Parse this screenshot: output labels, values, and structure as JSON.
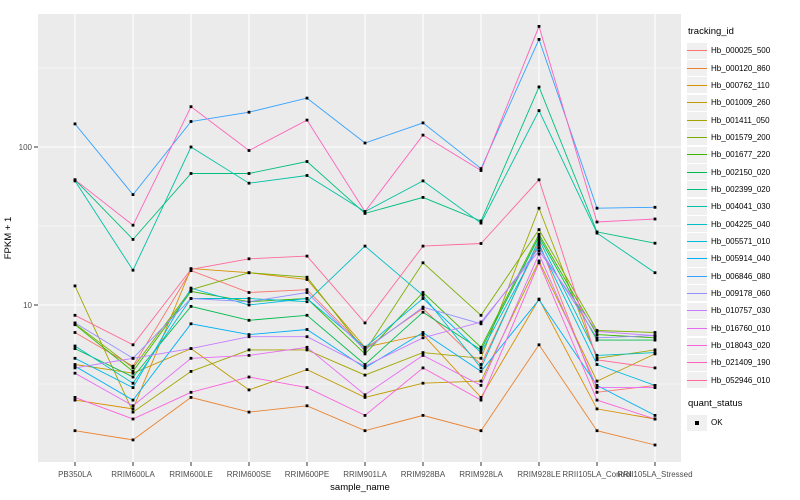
{
  "chart_data": {
    "type": "line",
    "title": "",
    "xlabel": "sample_name",
    "ylabel": "FPKM + 1",
    "x_categories": [
      "PB350LA",
      "RRIM600LA",
      "RRIM600LE",
      "RRIM600SE",
      "RRIM600PE",
      "RRIM901LA",
      "RRIM928BA",
      "RRIM928LA",
      "RRIM928LE",
      "RRII105LA_Control",
      "RRII105LA_Stressed"
    ],
    "y_scale": "log10",
    "y_ticks": [
      100,
      10
    ],
    "y_minor_ticks": [
      316.23,
      31.62,
      3.162
    ],
    "ylim": [
      1.01,
      700
    ],
    "grid": true,
    "legend_position": "right",
    "legend": {
      "tracking_title": "tracking_id",
      "quant_title": "quant_status",
      "quant_label": "OK"
    },
    "point_marker": "black-square",
    "colors": {
      "panel_bg": "#EBEBEB",
      "grid": "#FFFFFF",
      "tick_label": "#4D4D4D",
      "axis_title": "#000000",
      "point": "#000000",
      "legend_key_bg": "#F0F0F0"
    },
    "series": [
      {
        "name": "Hb_000025_500",
        "color": "#F8766D",
        "values": [
          6.7,
          4.1,
          16.5,
          12.0,
          12.5,
          5.3,
          9.5,
          4.2,
          25.0,
          2.8,
          3.1
        ]
      },
      {
        "name": "Hb_000120_860",
        "color": "#EA8331",
        "values": [
          1.6,
          1.4,
          2.6,
          2.1,
          2.3,
          1.6,
          2.0,
          1.6,
          5.6,
          1.6,
          1.3
        ]
      },
      {
        "name": "Hb_000762_110",
        "color": "#D89000",
        "values": [
          2.5,
          2.2,
          17.0,
          16.0,
          14.5,
          5.4,
          6.5,
          2.6,
          10.9,
          2.2,
          1.9
        ]
      },
      {
        "name": "Hb_001009_260",
        "color": "#C09B00",
        "values": [
          4.2,
          3.7,
          5.3,
          2.9,
          3.9,
          2.6,
          3.2,
          3.3,
          19.0,
          3.3,
          4.9
        ]
      },
      {
        "name": "Hb_001411_050",
        "color": "#A3A500",
        "values": [
          13.2,
          2.1,
          3.8,
          5.2,
          5.2,
          3.6,
          5.0,
          4.6,
          41.0,
          4.6,
          5.2
        ]
      },
      {
        "name": "Hb_001579_200",
        "color": "#7CAE00",
        "values": [
          7.6,
          4.0,
          12.5,
          16.0,
          15.0,
          5.1,
          18.5,
          8.6,
          30.0,
          6.9,
          6.7
        ]
      },
      {
        "name": "Hb_001677_220",
        "color": "#39B600",
        "values": [
          7.5,
          3.8,
          12.2,
          10.5,
          11.0,
          4.9,
          12.0,
          5.4,
          28.0,
          6.5,
          6.2
        ]
      },
      {
        "name": "Hb_002150_020",
        "color": "#00BB4E",
        "values": [
          5.3,
          3.5,
          9.8,
          8.0,
          8.6,
          4.2,
          9.0,
          5.2,
          27.0,
          6.0,
          6.0
        ]
      },
      {
        "name": "Hb_002399_020",
        "color": "#00BF7D",
        "values": [
          62.0,
          26.0,
          68.0,
          68.0,
          81.0,
          38.0,
          48.0,
          34.0,
          240.0,
          29.0,
          24.6
        ]
      },
      {
        "name": "Hb_004041_030",
        "color": "#00C1A3",
        "values": [
          61.0,
          16.6,
          100.0,
          59.0,
          66.0,
          39.0,
          61.0,
          33.0,
          170.0,
          28.5,
          16.0
        ]
      },
      {
        "name": "Hb_004225_040",
        "color": "#00BFC4",
        "values": [
          5.5,
          3.2,
          11.0,
          11.0,
          10.5,
          23.6,
          11.5,
          4.0,
          26.0,
          4.8,
          5.0
        ]
      },
      {
        "name": "Hb_005571_010",
        "color": "#00BAE0",
        "values": [
          4.6,
          3.0,
          12.8,
          10.0,
          11.0,
          5.4,
          11.0,
          5.0,
          24.0,
          4.2,
          3.1
        ]
      },
      {
        "name": "Hb_005914_040",
        "color": "#00B0F6",
        "values": [
          4.1,
          2.5,
          7.6,
          6.5,
          7.0,
          4.0,
          6.7,
          3.8,
          10.8,
          3.1,
          2.0
        ]
      },
      {
        "name": "Hb_006846_080",
        "color": "#35A2FF",
        "values": [
          140.0,
          50.0,
          145.0,
          166.0,
          204.0,
          106.0,
          142.0,
          73.0,
          480.0,
          41.0,
          41.5
        ]
      },
      {
        "name": "Hb_009178_060",
        "color": "#9590FF",
        "values": [
          7.7,
          4.6,
          11.0,
          10.5,
          12.0,
          5.2,
          9.7,
          7.6,
          23.0,
          6.2,
          6.4
        ]
      },
      {
        "name": "Hb_010757_030",
        "color": "#C77CFF",
        "values": [
          4.0,
          4.6,
          5.3,
          6.3,
          6.3,
          4.1,
          6.2,
          7.8,
          22.0,
          6.8,
          6.4
        ]
      },
      {
        "name": "Hb_016760_010",
        "color": "#E76BF3",
        "values": [
          3.7,
          2.3,
          4.6,
          4.8,
          5.4,
          2.7,
          4.8,
          3.1,
          21.0,
          3.0,
          3.0
        ]
      },
      {
        "name": "Hb_018043_020",
        "color": "#FA62DB",
        "values": [
          2.6,
          1.9,
          2.8,
          3.5,
          3.0,
          2.0,
          4.0,
          2.5,
          18.5,
          2.5,
          1.9
        ]
      },
      {
        "name": "Hb_021409_190",
        "color": "#FF62BC",
        "values": [
          62.0,
          32.0,
          180.0,
          95.0,
          148.0,
          39.0,
          119.0,
          71.0,
          580.0,
          33.5,
          35.0
        ]
      },
      {
        "name": "Hb_052946_010",
        "color": "#FF6A98",
        "values": [
          8.6,
          5.6,
          16.8,
          19.6,
          20.4,
          7.7,
          23.6,
          24.5,
          62.0,
          4.5,
          4.0
        ]
      }
    ]
  }
}
